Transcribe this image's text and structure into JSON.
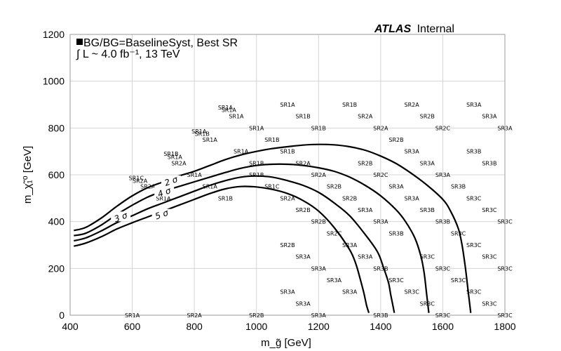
{
  "chart_data": {
    "type": "line",
    "experiment": "ATLAS",
    "experiment_status": "Internal",
    "legend_text": "BG/BG=BaselineSyst, Best SR",
    "lumi_text": "∫ L ~ 4.0 fb⁻¹, 13 TeV",
    "xlabel": "m_g̃ [GeV]",
    "ylabel": "m_χ̃₁⁰ [GeV]",
    "xlim": [
      400,
      1800
    ],
    "ylim": [
      0,
      1200
    ],
    "xticks": [
      400,
      600,
      800,
      1000,
      1200,
      1400,
      1600,
      1800
    ],
    "yticks": [
      0,
      200,
      400,
      600,
      800,
      1000,
      1200
    ],
    "grid": true,
    "series": [
      {
        "name": "2 σ",
        "x": [
          412,
          450,
          500,
          550,
          600,
          650,
          700,
          750,
          800,
          850,
          900,
          950,
          1000,
          1050,
          1100,
          1150,
          1200,
          1250,
          1300,
          1350,
          1400,
          1450,
          1500,
          1550,
          1600,
          1625,
          1650,
          1662,
          1673,
          1682,
          1690
        ],
        "y": [
          362,
          375,
          415,
          465,
          510,
          545,
          570,
          595,
          615,
          640,
          665,
          685,
          700,
          712,
          720,
          727,
          730,
          728,
          720,
          705,
          680,
          648,
          605,
          555,
          495,
          445,
          370,
          300,
          200,
          100,
          10
        ]
      },
      {
        "name": "3 σ",
        "x": [
          412,
          450,
          500,
          550,
          600,
          650,
          700,
          750,
          800,
          850,
          900,
          950,
          1000,
          1050,
          1100,
          1150,
          1200,
          1250,
          1300,
          1350,
          1400,
          1450,
          1480,
          1510,
          1530,
          1540,
          1548,
          1555
        ],
        "y": [
          340,
          350,
          385,
          430,
          470,
          505,
          530,
          550,
          570,
          590,
          610,
          628,
          640,
          645,
          645,
          640,
          630,
          615,
          590,
          555,
          510,
          450,
          400,
          330,
          250,
          180,
          90,
          10
        ]
      },
      {
        "name": "4 σ",
        "x": [
          412,
          450,
          500,
          550,
          600,
          650,
          700,
          750,
          800,
          850,
          900,
          950,
          1000,
          1050,
          1100,
          1150,
          1200,
          1250,
          1300,
          1350,
          1390,
          1410,
          1425,
          1432,
          1438,
          1444
        ],
        "y": [
          318,
          330,
          360,
          395,
          425,
          455,
          480,
          505,
          530,
          555,
          575,
          590,
          595,
          590,
          575,
          555,
          525,
          480,
          425,
          345,
          270,
          200,
          140,
          90,
          50,
          10
        ]
      },
      {
        "name": "5 σ",
        "x": [
          412,
          450,
          500,
          550,
          600,
          650,
          700,
          750,
          800,
          850,
          900,
          950,
          1000,
          1050,
          1100,
          1150,
          1200,
          1250,
          1300,
          1320,
          1335,
          1345,
          1350,
          1355,
          1362
        ],
        "y": [
          295,
          308,
          335,
          368,
          395,
          420,
          445,
          470,
          495,
          520,
          540,
          550,
          548,
          538,
          520,
          490,
          445,
          375,
          280,
          220,
          150,
          100,
          70,
          40,
          10
        ]
      }
    ],
    "curve_labels": [
      {
        "text": "2 σ",
        "x": 725,
        "y": 573
      },
      {
        "text": "3 σ",
        "x": 563,
        "y": 419
      },
      {
        "text": "4 σ",
        "x": 703,
        "y": 525
      },
      {
        "text": "5 σ",
        "x": 695,
        "y": 430
      }
    ],
    "signal_region_labels": [
      {
        "text": "SR1A",
        "x": 900,
        "y": 888
      },
      {
        "text": "SR1A",
        "x": 911,
        "y": 877
      },
      {
        "text": "SR1A",
        "x": 935,
        "y": 850
      },
      {
        "text": "SR1A",
        "x": 1100,
        "y": 900
      },
      {
        "text": "SR1B",
        "x": 1300,
        "y": 900
      },
      {
        "text": "SR2A",
        "x": 1500,
        "y": 900
      },
      {
        "text": "SR3A",
        "x": 1700,
        "y": 900
      },
      {
        "text": "SR1B",
        "x": 1150,
        "y": 850
      },
      {
        "text": "SR2A",
        "x": 1350,
        "y": 850
      },
      {
        "text": "SR2B",
        "x": 1550,
        "y": 850
      },
      {
        "text": "SR3A",
        "x": 1750,
        "y": 850
      },
      {
        "text": "SR1A",
        "x": 1000,
        "y": 800
      },
      {
        "text": "SR1B",
        "x": 1200,
        "y": 800
      },
      {
        "text": "SR2A",
        "x": 1400,
        "y": 800
      },
      {
        "text": "SR2C",
        "x": 1600,
        "y": 800
      },
      {
        "text": "SR3A",
        "x": 1800,
        "y": 800
      },
      {
        "text": "SR1A",
        "x": 815,
        "y": 786
      },
      {
        "text": "SR1B",
        "x": 825,
        "y": 775
      },
      {
        "text": "SR1A",
        "x": 850,
        "y": 750
      },
      {
        "text": "SR1B",
        "x": 1050,
        "y": 750
      },
      {
        "text": "SR2B",
        "x": 1450,
        "y": 750
      },
      {
        "text": "SR1A",
        "x": 950,
        "y": 700
      },
      {
        "text": "SR1B",
        "x": 1100,
        "y": 700
      },
      {
        "text": "SR3A",
        "x": 1500,
        "y": 700
      },
      {
        "text": "SR3B",
        "x": 1700,
        "y": 700
      },
      {
        "text": "SR1B",
        "x": 725,
        "y": 690
      },
      {
        "text": "SR1A",
        "x": 737,
        "y": 677
      },
      {
        "text": "SR2A",
        "x": 750,
        "y": 650
      },
      {
        "text": "SR1B",
        "x": 1000,
        "y": 650
      },
      {
        "text": "SR2A",
        "x": 1150,
        "y": 650
      },
      {
        "text": "SR2B",
        "x": 1350,
        "y": 650
      },
      {
        "text": "SR3A",
        "x": 1550,
        "y": 650
      },
      {
        "text": "SR3B",
        "x": 1750,
        "y": 650
      },
      {
        "text": "SR1A",
        "x": 800,
        "y": 600
      },
      {
        "text": "SR1B",
        "x": 1000,
        "y": 600
      },
      {
        "text": "SR2A",
        "x": 1200,
        "y": 600
      },
      {
        "text": "SR2C",
        "x": 1400,
        "y": 600
      },
      {
        "text": "SR3A",
        "x": 1600,
        "y": 600
      },
      {
        "text": "SR1C",
        "x": 613,
        "y": 587
      },
      {
        "text": "SR2A",
        "x": 625,
        "y": 574
      },
      {
        "text": "SR2A",
        "x": 650,
        "y": 550
      },
      {
        "text": "SR1A",
        "x": 850,
        "y": 550
      },
      {
        "text": "SR1C",
        "x": 1050,
        "y": 550
      },
      {
        "text": "SR2B",
        "x": 1250,
        "y": 550
      },
      {
        "text": "SR3A",
        "x": 1450,
        "y": 550
      },
      {
        "text": "SR3B",
        "x": 1650,
        "y": 550
      },
      {
        "text": "SR1A",
        "x": 700,
        "y": 500
      },
      {
        "text": "SR1B",
        "x": 900,
        "y": 500
      },
      {
        "text": "SR2A",
        "x": 1100,
        "y": 500
      },
      {
        "text": "SR2B",
        "x": 1300,
        "y": 500
      },
      {
        "text": "SR3A",
        "x": 1500,
        "y": 500
      },
      {
        "text": "SR3C",
        "x": 1700,
        "y": 500
      },
      {
        "text": "SR2B",
        "x": 1150,
        "y": 450
      },
      {
        "text": "SR3A",
        "x": 1350,
        "y": 450
      },
      {
        "text": "SR3B",
        "x": 1550,
        "y": 450
      },
      {
        "text": "SR3C",
        "x": 1750,
        "y": 450
      },
      {
        "text": "SR2B",
        "x": 1200,
        "y": 400
      },
      {
        "text": "SR3A",
        "x": 1400,
        "y": 400
      },
      {
        "text": "SR3B",
        "x": 1600,
        "y": 400
      },
      {
        "text": "SR3C",
        "x": 1800,
        "y": 400
      },
      {
        "text": "SR2C",
        "x": 1250,
        "y": 350
      },
      {
        "text": "SR3B",
        "x": 1450,
        "y": 350
      },
      {
        "text": "SR3C",
        "x": 1650,
        "y": 350
      },
      {
        "text": "SR2B",
        "x": 1100,
        "y": 300
      },
      {
        "text": "SR3A",
        "x": 1300,
        "y": 300
      },
      {
        "text": "SR3C",
        "x": 1700,
        "y": 300
      },
      {
        "text": "SR3A",
        "x": 1150,
        "y": 250
      },
      {
        "text": "SR3A",
        "x": 1350,
        "y": 250
      },
      {
        "text": "SR3C",
        "x": 1550,
        "y": 250
      },
      {
        "text": "SR3C",
        "x": 1750,
        "y": 250
      },
      {
        "text": "SR3A",
        "x": 1200,
        "y": 200
      },
      {
        "text": "SR3B",
        "x": 1400,
        "y": 200
      },
      {
        "text": "SR3C",
        "x": 1600,
        "y": 200
      },
      {
        "text": "SR3C",
        "x": 1800,
        "y": 200
      },
      {
        "text": "SR3A",
        "x": 1250,
        "y": 150
      },
      {
        "text": "SR3C",
        "x": 1450,
        "y": 150
      },
      {
        "text": "SR3C",
        "x": 1650,
        "y": 150
      },
      {
        "text": "SR3A",
        "x": 1100,
        "y": 100
      },
      {
        "text": "SR3A",
        "x": 1300,
        "y": 100
      },
      {
        "text": "SR3C",
        "x": 1500,
        "y": 100
      },
      {
        "text": "SR3C",
        "x": 1700,
        "y": 100
      },
      {
        "text": "SR3A",
        "x": 1150,
        "y": 50
      },
      {
        "text": "SR3C",
        "x": 1550,
        "y": 50
      },
      {
        "text": "SR3C",
        "x": 1750,
        "y": 50
      },
      {
        "text": "SR1A",
        "x": 600,
        "y": 0
      },
      {
        "text": "SR2A",
        "x": 800,
        "y": 0
      },
      {
        "text": "SR2B",
        "x": 1000,
        "y": 0
      },
      {
        "text": "SR3A",
        "x": 1200,
        "y": 0
      },
      {
        "text": "SR3B",
        "x": 1400,
        "y": 0
      },
      {
        "text": "SR3C",
        "x": 1600,
        "y": 0
      },
      {
        "text": "SR3C",
        "x": 1800,
        "y": 0
      }
    ]
  }
}
